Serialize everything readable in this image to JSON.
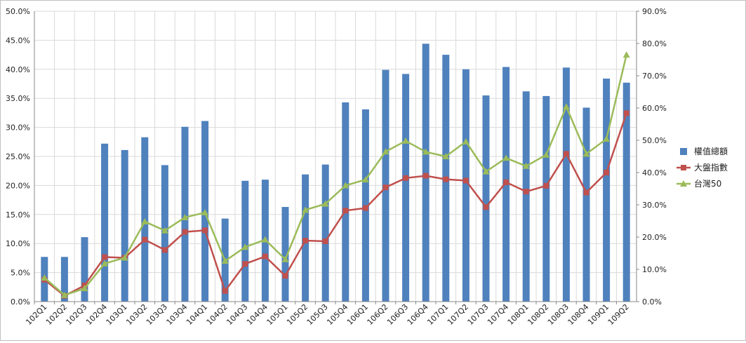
{
  "chart_data": {
    "type": "bar",
    "categories": [
      "102Q1",
      "102Q2",
      "102Q3",
      "102Q4",
      "103Q1",
      "103Q2",
      "103Q3",
      "103Q4",
      "104Q1",
      "104Q2",
      "104Q3",
      "104Q4",
      "105Q1",
      "105Q2",
      "105Q3",
      "105Q4",
      "106Q1",
      "106Q2",
      "106Q3",
      "106Q4",
      "107Q1",
      "107Q2",
      "107Q3",
      "107Q4",
      "108Q1",
      "108Q2",
      "108Q3",
      "108Q4",
      "109Q1",
      "109Q2"
    ],
    "left_axis": {
      "min": 0,
      "max": 50,
      "step": 5,
      "tick_labels": [
        "0.0%",
        "5.0%",
        "10.0%",
        "15.0%",
        "20.0%",
        "25.0%",
        "30.0%",
        "35.0%",
        "40.0%",
        "45.0%",
        "50.0%"
      ]
    },
    "right_axis": {
      "min": 0,
      "max": 90,
      "step": 10,
      "tick_labels": [
        "0.0%",
        "10.0%",
        "20.0%",
        "30.0%",
        "40.0%",
        "50.0%",
        "60.0%",
        "70.0%",
        "80.0%",
        "90.0%"
      ]
    },
    "grid": true,
    "legend_position": "right",
    "series": [
      {
        "name": "權值總額",
        "kind": "bar",
        "axis": "left",
        "color": "#4f81bd",
        "values": [
          7.7,
          7.7,
          11.1,
          27.2,
          26.1,
          28.3,
          23.5,
          30.1,
          31.1,
          14.3,
          20.8,
          21.0,
          16.3,
          21.9,
          23.6,
          34.3,
          33.1,
          39.9,
          39.2,
          44.4,
          42.5,
          40.0,
          35.5,
          40.4,
          36.2,
          35.4,
          40.3,
          33.4,
          38.4,
          37.7
        ]
      },
      {
        "name": "大盤指數",
        "kind": "line",
        "axis": "right",
        "color": "#c0504d",
        "marker": "square",
        "values": [
          6.8,
          1.8,
          5.0,
          13.8,
          13.6,
          19.2,
          16.0,
          21.6,
          22.1,
          3.3,
          11.7,
          14.0,
          8.0,
          18.9,
          18.7,
          28.2,
          29.0,
          35.4,
          38.3,
          39.0,
          37.9,
          37.5,
          29.3,
          37.0,
          34.1,
          35.9,
          45.8,
          33.8,
          40.0,
          58.4
        ]
      },
      {
        "name": "台灣50",
        "kind": "line",
        "axis": "right",
        "color": "#9bbb59",
        "marker": "triangle",
        "values": [
          7.4,
          2.0,
          4.1,
          11.8,
          13.6,
          24.8,
          22.0,
          26.1,
          27.6,
          12.6,
          16.9,
          19.2,
          13.1,
          28.4,
          30.3,
          36.0,
          37.8,
          46.5,
          49.8,
          46.4,
          45.0,
          49.6,
          40.3,
          44.5,
          42.0,
          45.5,
          60.4,
          45.8,
          50.4,
          76.5
        ]
      }
    ]
  }
}
